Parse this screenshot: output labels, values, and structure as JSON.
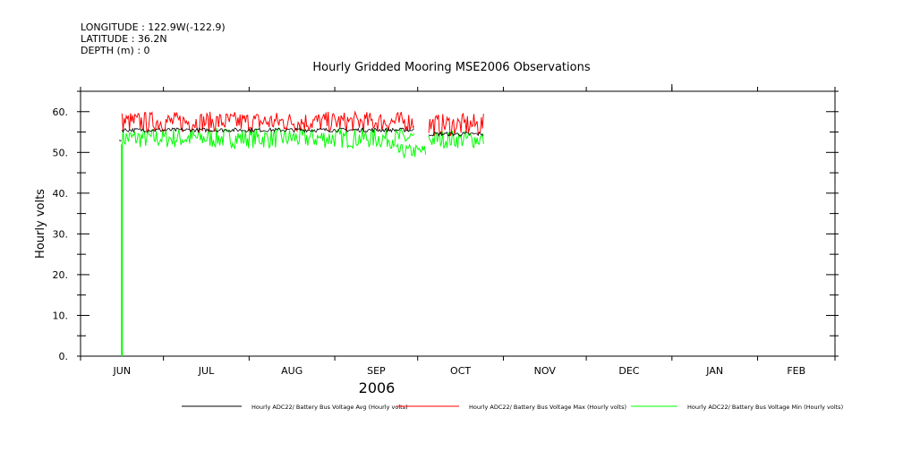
{
  "header": {
    "longitude": "LONGITUDE : 122.9W(-122.9)",
    "latitude": "LATITUDE : 36.2N",
    "depth": "DEPTH (m) : 0"
  },
  "chart_data": {
    "type": "line",
    "title": "Hourly Gridded Mooring MSE2006 Observations",
    "ylabel": "Hourly volts",
    "xlabel": "2006",
    "ylim": [
      0,
      65
    ],
    "yticks": [
      0,
      10,
      20,
      30,
      40,
      50,
      60
    ],
    "ytick_labels": [
      "0.",
      "10.",
      "20.",
      "30.",
      "40.",
      "50.",
      "60."
    ],
    "months": [
      "JUN",
      "JUL",
      "AUG",
      "SEP",
      "OCT",
      "NOV",
      "DEC",
      "JAN",
      "FEB"
    ],
    "series": [
      {
        "name": "Hourly ADC22/ Battery Bus Voltage Avg (Hourly volts)",
        "color": "#000000",
        "segments": [
          {
            "start": "2006-06-15",
            "end": "2006-06-16",
            "low": 52.5,
            "high": 53.5
          },
          {
            "start": "2006-06-16",
            "end": "2006-09-30",
            "low": 54.5,
            "high": 56.5
          },
          {
            "start": "2006-10-05",
            "end": "2006-10-25",
            "low": 53.5,
            "high": 55.5
          }
        ]
      },
      {
        "name": "Hourly ADC22/ Battery Bus Voltage Max (Hourly volts)",
        "color": "#ff0000",
        "segments": [
          {
            "start": "2006-06-16",
            "end": "2006-09-30",
            "low": 55,
            "high": 60
          },
          {
            "start": "2006-10-05",
            "end": "2006-10-25",
            "low": 54,
            "high": 59.5
          }
        ]
      },
      {
        "name": "Hourly ADC22/ Battery Bus Voltage Min (Hourly volts)",
        "color": "#00ff00",
        "segments": [
          {
            "start": "2006-06-15",
            "end": "2006-06-16",
            "low": 0,
            "high": 52
          },
          {
            "start": "2006-06-16",
            "end": "2006-09-30",
            "low": 51,
            "high": 56
          },
          {
            "start": "2006-09-23",
            "end": "2006-10-04",
            "low": 48.5,
            "high": 52
          },
          {
            "start": "2006-10-05",
            "end": "2006-10-25",
            "low": 51,
            "high": 55.5
          }
        ]
      }
    ],
    "legend_position": "bottom"
  }
}
